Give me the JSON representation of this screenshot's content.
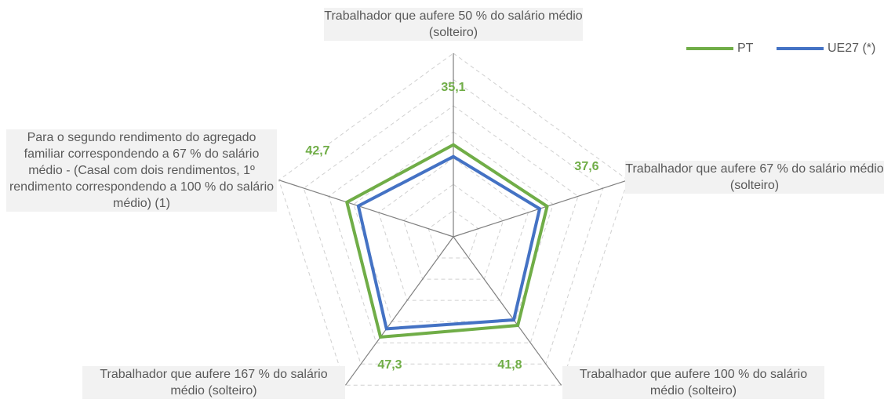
{
  "chart_data": {
    "type": "radar",
    "categories": [
      "Trabalhador que aufere 50 % do salário médio (solteiro)",
      "Trabalhador que aufere 67 % do salário médio (solteiro)",
      "Trabalhador que aufere 100 % do salário médio (solteiro)",
      "Trabalhador que aufere 167 % do salário médio (solteiro)",
      "Para o segundo rendimento do agregado familiar correspondendo a 67 % do salário médio - (Casal com dois rendimentos, 1º rendimento correspondendo a 100 % do salário médio) (1)"
    ],
    "series": [
      {
        "name": "PT",
        "color": "#70ad47",
        "values": [
          35.1,
          37.6,
          41.8,
          47.3,
          42.7
        ],
        "value_labels": [
          "35,1",
          "37,6",
          "41,8",
          "47,3",
          "42,7"
        ]
      },
      {
        "name": "UE27 (*)",
        "color": "#4472c4",
        "values": [
          30.6,
          34.6,
          39.2,
          43.4,
          38.1
        ]
      }
    ],
    "ylim": [
      0,
      70
    ],
    "yticks": [
      0,
      10,
      20,
      30,
      40,
      50,
      60,
      70
    ],
    "grid": true,
    "legend": "top-right"
  }
}
